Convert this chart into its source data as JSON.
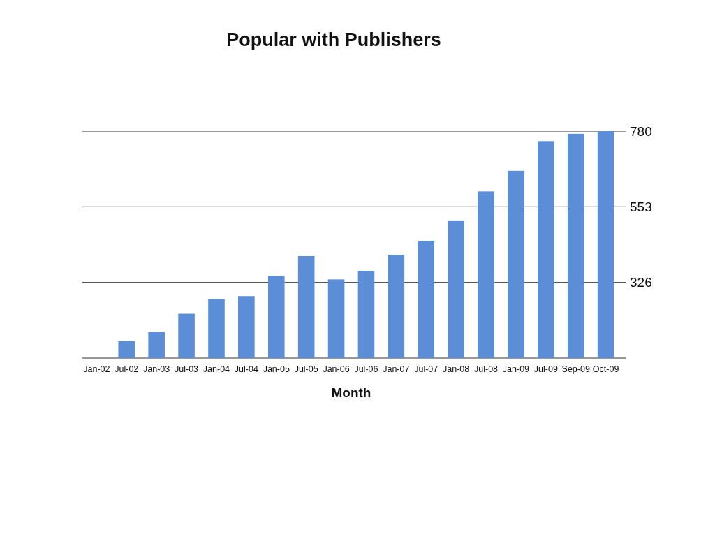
{
  "chart_data": {
    "type": "bar",
    "title": "Popular with Publishers",
    "xlabel": "Month",
    "categories": [
      "Jan-02",
      "Jul-02",
      "Jan-03",
      "Jul-03",
      "Jan-04",
      "Jul-04",
      "Jan-05",
      "Jul-05",
      "Jan-06",
      "Jul-06",
      "Jan-07",
      "Jul-07",
      "Jan-08",
      "Jul-08",
      "Jan-09",
      "Jul-09",
      "Sep-09",
      "Oct-09"
    ],
    "values": [
      99,
      150,
      177,
      232,
      276,
      285,
      346,
      405,
      335,
      361,
      409,
      451,
      512,
      599,
      661,
      750,
      772,
      780
    ],
    "color": "#5b8ed6",
    "ylim": [
      99,
      780
    ],
    "yticks": [
      {
        "value": 99,
        "label": null
      },
      326,
      553,
      780
    ],
    "grid": "y"
  }
}
